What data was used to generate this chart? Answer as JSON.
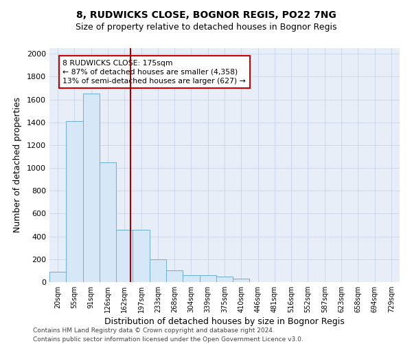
{
  "title1": "8, RUDWICKS CLOSE, BOGNOR REGIS, PO22 7NG",
  "title2": "Size of property relative to detached houses in Bognor Regis",
  "xlabel": "Distribution of detached houses by size in Bognor Regis",
  "ylabel": "Number of detached properties",
  "bar_labels": [
    "20sqm",
    "55sqm",
    "91sqm",
    "126sqm",
    "162sqm",
    "197sqm",
    "233sqm",
    "268sqm",
    "304sqm",
    "339sqm",
    "375sqm",
    "410sqm",
    "446sqm",
    "481sqm",
    "516sqm",
    "552sqm",
    "587sqm",
    "623sqm",
    "658sqm",
    "694sqm",
    "729sqm"
  ],
  "bar_values": [
    90,
    1410,
    1650,
    1050,
    460,
    460,
    200,
    100,
    60,
    60,
    50,
    30,
    0,
    0,
    0,
    0,
    0,
    0,
    0,
    0,
    0
  ],
  "bar_color": "#d6e8f7",
  "bar_edge_color": "#6aaed6",
  "property_line_color": "#aa0000",
  "annotation_text": "8 RUDWICKS CLOSE: 175sqm\n← 87% of detached houses are smaller (4,358)\n13% of semi-detached houses are larger (627) →",
  "annotation_box_color": "#cc0000",
  "ylim": [
    0,
    2050
  ],
  "yticks": [
    0,
    200,
    400,
    600,
    800,
    1000,
    1200,
    1400,
    1600,
    1800,
    2000
  ],
  "grid_color": "#c8d4e8",
  "bg_color": "#e8eef8",
  "footer1": "Contains HM Land Registry data © Crown copyright and database right 2024.",
  "footer2": "Contains public sector information licensed under the Open Government Licence v3.0."
}
